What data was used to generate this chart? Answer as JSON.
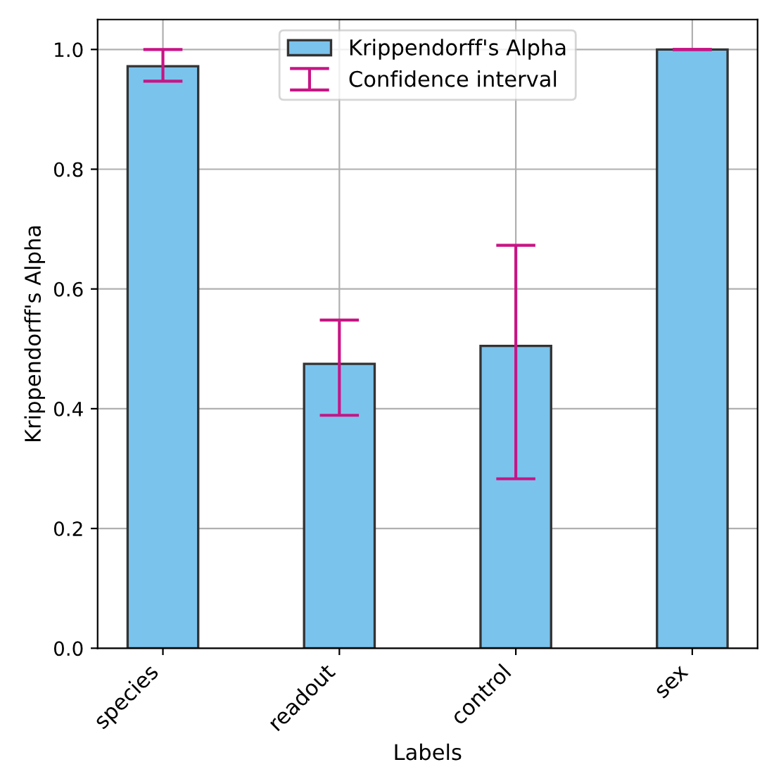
{
  "chart_data": {
    "type": "bar",
    "xlabel": "Labels",
    "ylabel": "Krippendorff's Alpha",
    "categories": [
      "species",
      "readout",
      "control",
      "sex"
    ],
    "series": [
      {
        "name": "Krippendorff's Alpha",
        "color": "#7ac3ed",
        "values": [
          0.972,
          0.475,
          0.505,
          1.0
        ],
        "errors": [
          [
            0.947,
            1.0
          ],
          [
            0.389,
            0.548
          ],
          [
            0.283,
            0.673
          ],
          [
            1.0,
            1.0
          ]
        ]
      }
    ],
    "annotations": [
      "Confidence interval"
    ],
    "ylim": [
      0,
      1.05
    ],
    "yticks": [
      {
        "value": 0,
        "label": "0.0"
      },
      0.2,
      0.4,
      0.6,
      0.8,
      {
        "value": 1,
        "label": "1.0"
      }
    ],
    "grid": true,
    "legend": "top"
  }
}
